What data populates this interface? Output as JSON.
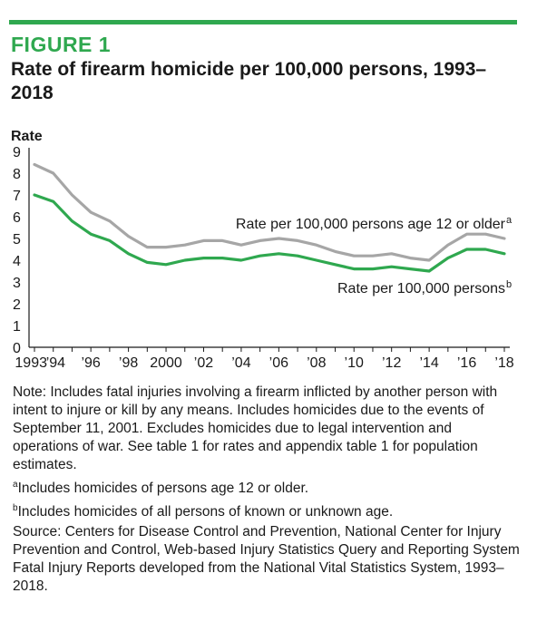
{
  "figure": {
    "label": "FIGURE 1",
    "title": "Rate of firearm homicide per 100,000 persons, 1993–2018",
    "accent_color": "#2fa84f"
  },
  "chart_data": {
    "type": "line",
    "ylabel": "Rate",
    "xlabel": "",
    "ylim": [
      0,
      9
    ],
    "yticks": [
      0,
      1,
      2,
      3,
      4,
      5,
      6,
      7,
      8,
      9
    ],
    "x": [
      1993,
      1994,
      1995,
      1996,
      1997,
      1998,
      1999,
      2000,
      2001,
      2002,
      2003,
      2004,
      2005,
      2006,
      2007,
      2008,
      2009,
      2010,
      2011,
      2012,
      2013,
      2014,
      2015,
      2016,
      2017,
      2018
    ],
    "xtick_labels": [
      {
        "x": 1993,
        "label": "1993"
      },
      {
        "x": 1994,
        "label": "’94"
      },
      {
        "x": 1996,
        "label": "’96"
      },
      {
        "x": 1998,
        "label": "’98"
      },
      {
        "x": 2000,
        "label": "2000"
      },
      {
        "x": 2002,
        "label": "’02"
      },
      {
        "x": 2004,
        "label": "’04"
      },
      {
        "x": 2006,
        "label": "’06"
      },
      {
        "x": 2008,
        "label": "’08"
      },
      {
        "x": 2010,
        "label": "’10"
      },
      {
        "x": 2012,
        "label": "’12"
      },
      {
        "x": 2014,
        "label": "’14"
      },
      {
        "x": 2016,
        "label": "’16"
      },
      {
        "x": 2018,
        "label": "’18"
      }
    ],
    "grid": false,
    "series": [
      {
        "name": "Rate per 100,000 persons age 12 or older",
        "superscript": "a",
        "color": "#a6a6a6",
        "values": [
          8.4,
          8.0,
          7.0,
          6.2,
          5.8,
          5.1,
          4.6,
          4.6,
          4.7,
          4.9,
          4.9,
          4.7,
          4.9,
          5.0,
          4.9,
          4.7,
          4.4,
          4.2,
          4.2,
          4.3,
          4.1,
          4.0,
          4.7,
          5.2,
          5.2,
          5.0
        ]
      },
      {
        "name": "Rate per 100,000 persons",
        "superscript": "b",
        "color": "#2fa84f",
        "values": [
          7.0,
          6.7,
          5.8,
          5.2,
          4.9,
          4.3,
          3.9,
          3.8,
          4.0,
          4.1,
          4.1,
          4.0,
          4.2,
          4.3,
          4.2,
          4.0,
          3.8,
          3.6,
          3.6,
          3.7,
          3.6,
          3.5,
          4.1,
          4.5,
          4.5,
          4.3
        ]
      }
    ]
  },
  "notes": {
    "note": "Note: Includes fatal injuries involving a firearm inflicted by another person with intent to injure or kill by any means. Includes homicides due to the events of September 11, 2001. Excludes homicides due to legal intervention and operations of war. See table 1 for rates and appendix table 1 for population estimates.",
    "footnote_a_mark": "a",
    "footnote_a": "Includes homicides of persons age 12 or older.",
    "footnote_b_mark": "b",
    "footnote_b": "Includes homicides of all persons of known or unknown age.",
    "source": "Source: Centers for Disease Control and Prevention, National Center for Injury Prevention and Control, Web-based Injury Statistics Query and Reporting System Fatal Injury Reports developed from the National Vital Statistics System, 1993–2018."
  }
}
